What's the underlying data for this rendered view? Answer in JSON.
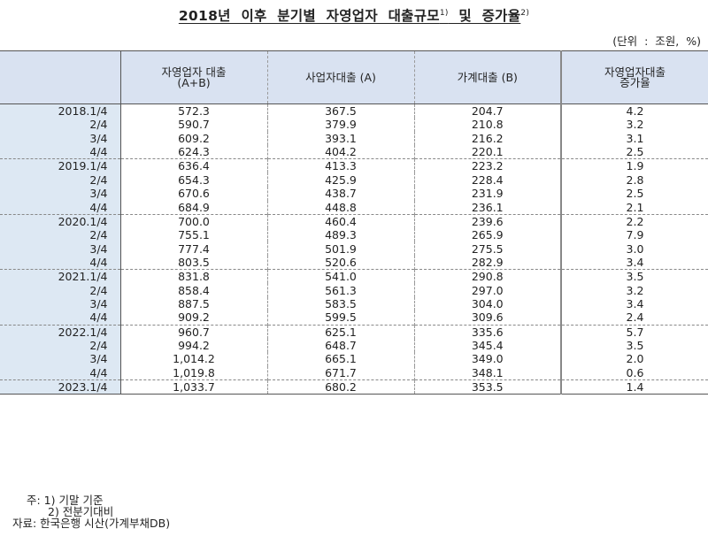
{
  "title": {
    "text": "2018년 이후 분기별 자영업자 대출규모",
    "sup1": "1)",
    "mid": " 및 증가율",
    "sup2": "2)"
  },
  "unit": "(단위 : 조원, %)",
  "table": {
    "headers": [
      {
        "line1": "",
        "line2": ""
      },
      {
        "line1": "자영업자 대출",
        "line2": "(A+B)"
      },
      {
        "line1": "사업자대출 (A)",
        "line2": ""
      },
      {
        "line1": "가계대출 (B)",
        "line2": ""
      },
      {
        "line1": "자영업자대출",
        "line2": "증가율"
      }
    ],
    "rows": [
      [
        "2018.1/4",
        "572.3",
        "367.5",
        "204.7",
        "4.2"
      ],
      [
        "2/4",
        "590.7",
        "379.9",
        "210.8",
        "3.2"
      ],
      [
        "3/4",
        "609.2",
        "393.1",
        "216.2",
        "3.1"
      ],
      [
        "4/4",
        "624.3",
        "404.2",
        "220.1",
        "2.5"
      ],
      [
        "2019.1/4",
        "636.4",
        "413.3",
        "223.2",
        "1.9"
      ],
      [
        "2/4",
        "654.3",
        "425.9",
        "228.4",
        "2.8"
      ],
      [
        "3/4",
        "670.6",
        "438.7",
        "231.9",
        "2.5"
      ],
      [
        "4/4",
        "684.9",
        "448.8",
        "236.1",
        "2.1"
      ],
      [
        "2020.1/4",
        "700.0",
        "460.4",
        "239.6",
        "2.2"
      ],
      [
        "2/4",
        "755.1",
        "489.3",
        "265.9",
        "7.9"
      ],
      [
        "3/4",
        "777.4",
        "501.9",
        "275.5",
        "3.0"
      ],
      [
        "4/4",
        "803.5",
        "520.6",
        "282.9",
        "3.4"
      ],
      [
        "2021.1/4",
        "831.8",
        "541.0",
        "290.8",
        "3.5"
      ],
      [
        "2/4",
        "858.4",
        "561.3",
        "297.0",
        "3.2"
      ],
      [
        "3/4",
        "887.5",
        "583.5",
        "304.0",
        "3.4"
      ],
      [
        "4/4",
        "909.2",
        "599.5",
        "309.6",
        "2.4"
      ],
      [
        "2022.1/4",
        "960.7",
        "625.1",
        "335.6",
        "5.7"
      ],
      [
        "2/4",
        "994.2",
        "648.7",
        "345.4",
        "3.5"
      ],
      [
        "3/4",
        "1,014.2",
        "665.1",
        "349.0",
        "2.0"
      ],
      [
        "4/4",
        "1,019.8",
        "671.7",
        "348.1",
        "0.6"
      ],
      [
        "2023.1/4",
        "1,033.7",
        "680.2",
        "353.5",
        "1.4"
      ]
    ]
  },
  "notes": {
    "note1": "주: 1) 기말 기준",
    "note2": "2) 전분기대비",
    "source": "자료: 한국은행 시산(가계부채DB)"
  },
  "colors": {
    "header_bg": "#d9e2f1",
    "stub_bg": "#dde8f3"
  }
}
